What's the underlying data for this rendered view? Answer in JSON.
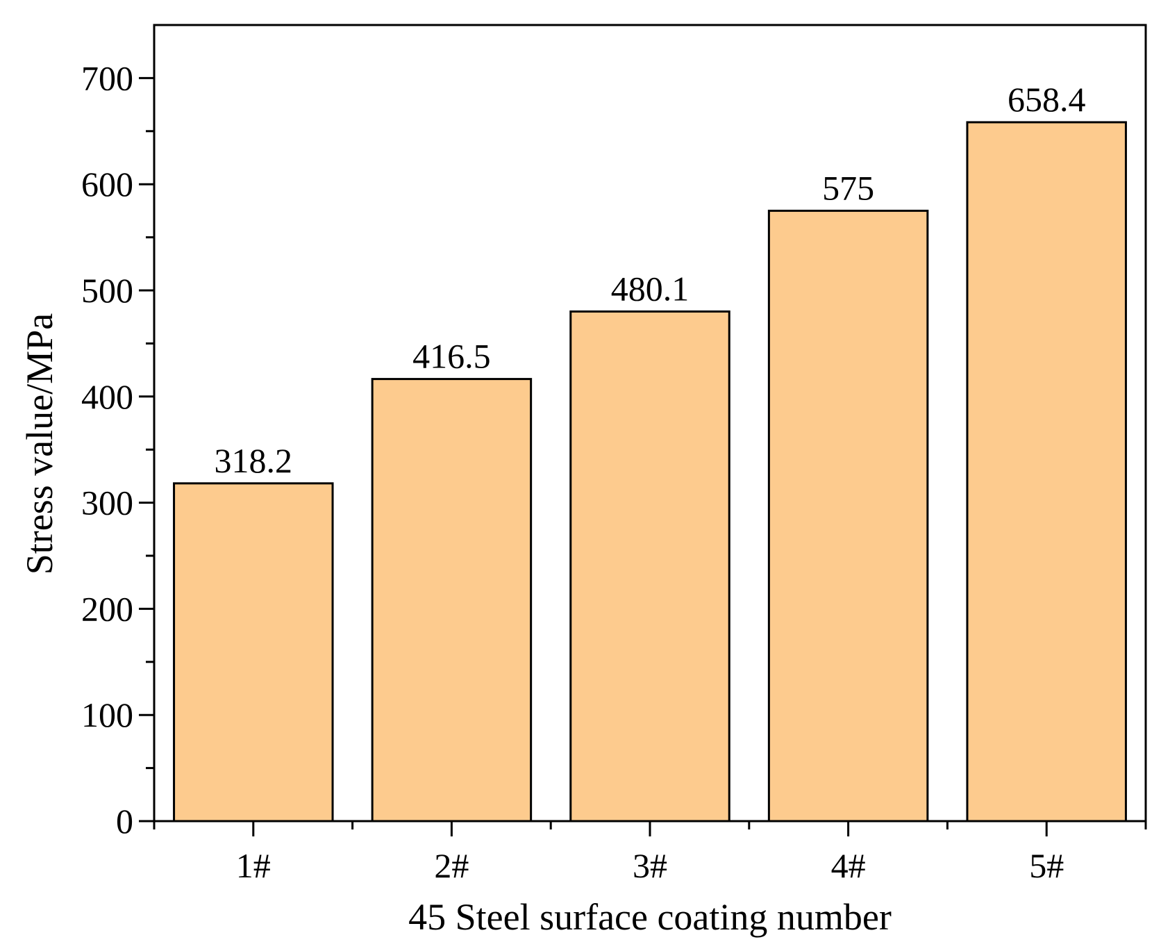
{
  "chart_data": {
    "type": "bar",
    "title": "",
    "categories": [
      "1#",
      "2#",
      "3#",
      "4#",
      "5#"
    ],
    "values": [
      318.2,
      416.5,
      480.1,
      575,
      658.4
    ],
    "data_labels": [
      "318.2",
      "416.5",
      "480.1",
      "575",
      "658.4"
    ],
    "xlabel": "45 Steel surface coating number",
    "ylabel": "Stress value/MPa",
    "ylim": [
      0,
      750
    ],
    "yticks": [
      0,
      100,
      200,
      300,
      400,
      500,
      600,
      700
    ],
    "ytick_labels": [
      "0",
      "100",
      "200",
      "300",
      "400",
      "500",
      "600",
      "700"
    ],
    "grid": false,
    "bar_color": "#FDCB8E",
    "edge_color": "#000000"
  }
}
